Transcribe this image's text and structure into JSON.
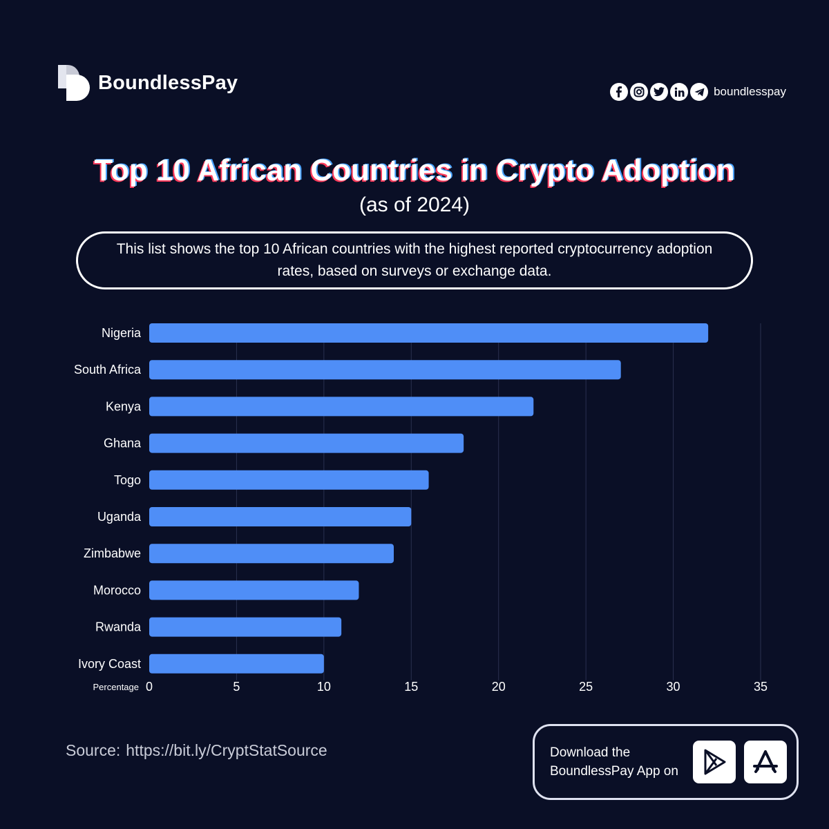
{
  "brand": {
    "name": "BoundlessPay"
  },
  "social": {
    "icons": [
      "facebook-icon",
      "instagram-icon",
      "twitter-icon",
      "linkedin-icon",
      "telegram-icon"
    ],
    "handle": "boundlesspay"
  },
  "header": {
    "title": "Top 10 African Countries in Crypto Adoption",
    "subtitle": "(as of 2024)",
    "description": "This list shows the top 10 African countries with the highest reported cryptocurrency adoption rates, based on surveys or exchange data."
  },
  "chart_data": {
    "type": "bar",
    "orientation": "horizontal",
    "categories": [
      "Nigeria",
      "South Africa",
      "Kenya",
      "Ghana",
      "Togo",
      "Uganda",
      "Zimbabwe",
      "Morocco",
      "Rwanda",
      "Ivory Coast"
    ],
    "values": [
      32,
      27,
      22,
      18,
      16,
      15,
      14,
      12,
      11,
      10
    ],
    "xlabel": "Percentage",
    "xlim": [
      0,
      35
    ],
    "xticks": [
      0,
      5,
      10,
      15,
      20,
      25,
      30,
      35
    ],
    "grid": true,
    "colors": {
      "bar": "#4f8ef7",
      "grid": "#2a3050",
      "text": "#ffffff"
    }
  },
  "footer": {
    "source_label": "Source:",
    "source_url": "https://bit.ly/CryptStatSource",
    "download_text": "Download the BoundlessPay App on",
    "stores": [
      "google-play-icon",
      "app-store-icon"
    ]
  },
  "colors": {
    "background": "#0a0f26",
    "accent": "#4f8ef7"
  }
}
